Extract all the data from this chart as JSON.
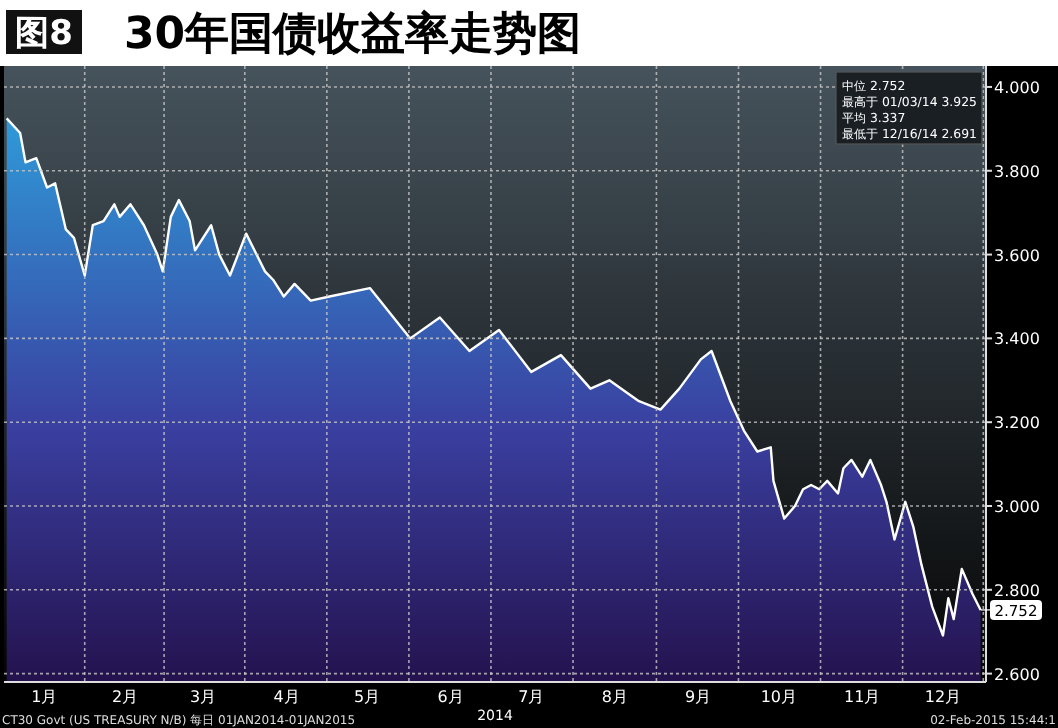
{
  "chart_data": {
    "type": "area",
    "title": "30年国债收益率走势图",
    "xlabel": "2014",
    "annotations": [
      "图8",
      "中位 2.752",
      "最高于 01/03/14 3.925",
      "平均 3.337",
      "最低于 12/16/14 2.691",
      "CT30 Govt (US TREASURY N/B) 每日 01JAN2014-01JAN2015",
      "02-Feb-2015 15:44:1",
      {
        "text": "2.752",
        "x": "2014-12-30",
        "y": 2.752
      }
    ],
    "x": [
      "2014-01-02",
      "2014-01-07",
      "2014-01-09",
      "2014-01-13",
      "2014-01-17",
      "2014-01-20",
      "2014-01-24",
      "2014-01-27",
      "2014-01-31",
      "2014-02-03",
      "2014-02-07",
      "2014-02-11",
      "2014-02-13",
      "2014-02-17",
      "2014-02-19",
      "2014-02-22",
      "2014-02-27",
      "2014-03-01",
      "2014-03-04",
      "2014-03-07",
      "2014-03-11",
      "2014-03-13",
      "2014-03-19",
      "2014-03-22",
      "2014-03-26",
      "2014-04-01",
      "2014-04-08",
      "2014-04-11",
      "2014-04-15",
      "2014-04-19",
      "2014-04-25",
      "2014-05-02",
      "2014-05-17",
      "2014-06-01",
      "2014-06-12",
      "2014-06-23",
      "2014-07-04",
      "2014-07-16",
      "2014-07-27",
      "2014-08-07",
      "2014-08-14",
      "2014-08-25",
      "2014-09-02",
      "2014-09-09",
      "2014-09-17",
      "2014-09-21",
      "2014-09-28",
      "2014-10-03",
      "2014-10-08",
      "2014-10-13",
      "2014-10-14",
      "2014-10-18",
      "2014-10-22",
      "2014-10-25",
      "2014-10-28",
      "2014-10-31",
      "2014-11-03",
      "2014-11-07",
      "2014-11-09",
      "2014-11-12",
      "2014-11-16",
      "2014-11-19",
      "2014-11-23",
      "2014-11-25",
      "2014-11-28",
      "2014-12-02",
      "2014-12-05",
      "2014-12-08",
      "2014-12-12",
      "2014-12-16",
      "2014-12-18",
      "2014-12-20",
      "2014-12-23",
      "2014-12-27",
      "2014-12-30"
    ],
    "series": [
      {
        "color": "#2f9ad8",
        "values": [
          3.925,
          3.89,
          3.82,
          3.83,
          3.76,
          3.77,
          3.66,
          3.64,
          3.55,
          3.67,
          3.68,
          3.72,
          3.69,
          3.72,
          3.7,
          3.67,
          3.6,
          3.56,
          3.69,
          3.73,
          3.68,
          3.61,
          3.67,
          3.6,
          3.55,
          3.65,
          3.56,
          3.54,
          3.5,
          3.53,
          3.49,
          3.5,
          3.52,
          3.4,
          3.45,
          3.37,
          3.42,
          3.32,
          3.36,
          3.28,
          3.3,
          3.25,
          3.23,
          3.28,
          3.35,
          3.37,
          3.25,
          3.18,
          3.13,
          3.14,
          3.06,
          2.97,
          3.0,
          3.04,
          3.05,
          3.04,
          3.06,
          3.03,
          3.09,
          3.11,
          3.07,
          3.11,
          3.05,
          3.01,
          2.92,
          3.01,
          2.95,
          2.86,
          2.76,
          2.691,
          2.78,
          2.73,
          2.85,
          2.79,
          2.752
        ]
      }
    ],
    "xlim": [
      "2014-01-01",
      "2015-01-01"
    ],
    "xticks": [
      {
        "value": "2014-01-16",
        "label": "1月"
      },
      {
        "value": "2014-02-15",
        "label": "2月"
      },
      {
        "value": "2014-03-16",
        "label": "3月"
      },
      {
        "value": "2014-04-16",
        "label": "4月"
      },
      {
        "value": "2014-05-16",
        "label": "5月"
      },
      {
        "value": "2014-06-16",
        "label": "6月"
      },
      {
        "value": "2014-07-16",
        "label": "7月"
      },
      {
        "value": "2014-08-16",
        "label": "8月"
      },
      {
        "value": "2014-09-16",
        "label": "9月"
      },
      {
        "value": "2014-10-16",
        "label": "10月"
      },
      {
        "value": "2014-11-16",
        "label": "11月"
      },
      {
        "value": "2014-12-16",
        "label": "12月"
      }
    ],
    "ylim": [
      2.58,
      4.05
    ],
    "yticks": [
      {
        "value": 2.6,
        "label": "2.600"
      },
      {
        "value": 2.8,
        "label": "2.800"
      },
      {
        "value": 3.0,
        "label": "3.000"
      },
      {
        "value": 3.2,
        "label": "3.200"
      },
      {
        "value": 3.4,
        "label": "3.400"
      },
      {
        "value": 3.6,
        "label": "3.600"
      },
      {
        "value": 3.8,
        "label": "3.800"
      },
      {
        "value": 4.0,
        "label": "4.000"
      }
    ],
    "grid": true
  }
}
